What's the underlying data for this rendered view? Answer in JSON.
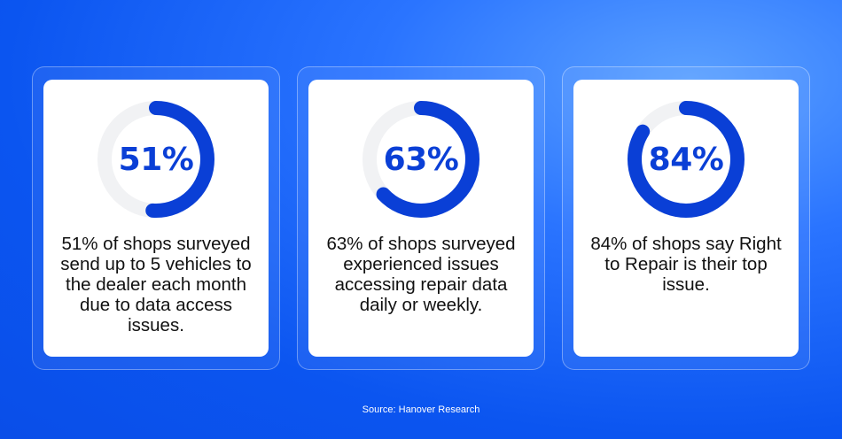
{
  "cards": [
    {
      "value": 51,
      "label": "51%",
      "caption": "51% of shops surveyed send up to 5 vehicles to the dealer each month due to data access issues."
    },
    {
      "value": 63,
      "label": "63%",
      "caption": "63% of shops surveyed experienced issues accessing repair data daily or weekly."
    },
    {
      "value": 84,
      "label": "84%",
      "caption": "84% of shops say Right to Repair is their top issue."
    }
  ],
  "source": "Source: Hanover Research",
  "colors": {
    "accent": "#0a3fd6",
    "track": "#f1f2f4",
    "background": "#0b55f0",
    "card": "#ffffff"
  },
  "chart_data": [
    {
      "type": "pie",
      "title": "",
      "values": [
        51
      ],
      "labels": [
        "51%"
      ],
      "max": 100
    },
    {
      "type": "pie",
      "title": "",
      "values": [
        63
      ],
      "labels": [
        "63%"
      ],
      "max": 100
    },
    {
      "type": "pie",
      "title": "",
      "values": [
        84
      ],
      "labels": [
        "84%"
      ],
      "max": 100
    }
  ]
}
